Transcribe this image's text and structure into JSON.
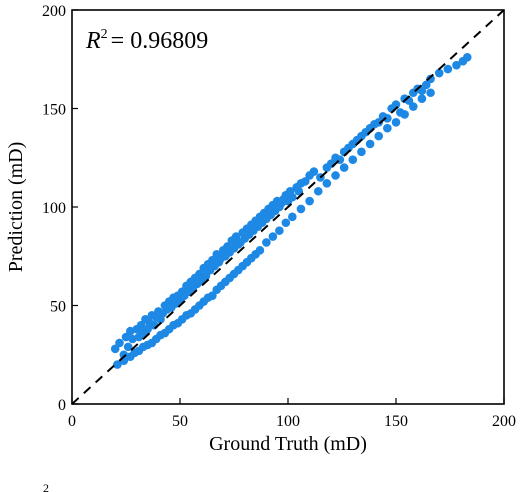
{
  "chart_data": {
    "type": "scatter",
    "xlabel": "Ground Truth (mD)",
    "ylabel": "Prediction (mD)",
    "xlim": [
      0,
      200
    ],
    "ylim": [
      0,
      200
    ],
    "xticks": [
      "0",
      "50",
      "100",
      "150",
      "200"
    ],
    "yticks": [
      "0",
      "50",
      "100",
      "150",
      "200"
    ],
    "annotation": {
      "base": "R",
      "sup": "2",
      "value": "= 0.96809"
    },
    "reference_line": {
      "style": "dashed",
      "from": [
        0,
        0
      ],
      "to": [
        200,
        200
      ],
      "color": "#000000"
    },
    "grid": false,
    "marker_color": "#1E88E5",
    "series": [
      {
        "x": [
          20,
          22,
          24,
          25,
          26,
          27,
          28,
          30,
          31,
          32,
          33,
          34,
          35,
          36,
          37,
          38,
          39,
          40,
          41,
          42,
          43,
          44,
          45,
          46,
          47,
          48,
          49,
          50,
          51,
          52,
          53,
          54,
          55,
          56,
          57,
          58,
          59,
          60,
          61,
          62,
          63,
          64,
          65,
          66,
          67,
          68,
          69,
          70,
          71,
          72,
          73,
          74,
          75,
          76,
          77,
          78,
          79,
          80,
          81,
          82,
          83,
          84,
          85,
          86,
          87,
          88,
          89,
          90,
          91,
          92,
          93,
          94,
          95,
          96,
          97,
          98,
          99,
          100,
          101,
          102,
          104,
          105,
          106,
          108,
          110,
          112,
          115,
          118,
          120,
          122,
          124,
          126,
          128,
          130,
          132,
          134,
          136,
          138,
          140,
          142,
          144,
          146,
          148,
          150,
          152,
          154,
          156,
          158,
          160,
          162,
          164,
          166,
          170,
          174,
          178,
          181,
          183
        ],
        "y": [
          28,
          31,
          25,
          34,
          29,
          37,
          33,
          38,
          34,
          40,
          36,
          43,
          38,
          41,
          45,
          40,
          44,
          47,
          43,
          46,
          50,
          48,
          52,
          49,
          54,
          51,
          55,
          53,
          57,
          55,
          60,
          57,
          62,
          59,
          64,
          61,
          66,
          63,
          69,
          65,
          71,
          68,
          73,
          70,
          76,
          72,
          74,
          78,
          75,
          80,
          77,
          83,
          79,
          85,
          81,
          82,
          87,
          84,
          89,
          86,
          91,
          88,
          93,
          90,
          95,
          92,
          97,
          94,
          99,
          96,
          101,
          98,
          103,
          100,
          102,
          104,
          106,
          103,
          108,
          105,
          110,
          108,
          112,
          113,
          116,
          118,
          115,
          120,
          122,
          125,
          124,
          128,
          130,
          132,
          134,
          136,
          138,
          140,
          142,
          143,
          146,
          145,
          150,
          152,
          148,
          155,
          154,
          158,
          160,
          159,
          162,
          165,
          168,
          170,
          172,
          174,
          176
        ]
      },
      {
        "x": [
          21,
          24,
          27,
          29,
          31,
          33,
          35,
          37,
          39,
          41,
          43,
          45,
          47,
          49,
          51,
          53,
          55,
          57,
          59,
          61,
          63,
          65,
          67,
          69,
          71,
          73,
          75,
          77,
          79,
          81,
          83,
          85,
          87,
          90,
          93,
          96,
          99,
          102,
          106,
          110,
          114,
          118,
          122,
          126,
          130,
          134,
          138,
          142,
          146,
          150,
          154,
          158,
          162,
          166
        ],
        "y": [
          20,
          22,
          24,
          26,
          27,
          29,
          30,
          31,
          33,
          35,
          36,
          38,
          40,
          41,
          43,
          45,
          46,
          48,
          50,
          52,
          54,
          55,
          58,
          60,
          62,
          64,
          66,
          68,
          70,
          72,
          74,
          76,
          78,
          82,
          85,
          88,
          92,
          95,
          99,
          103,
          108,
          112,
          116,
          120,
          124,
          128,
          132,
          136,
          140,
          143,
          147,
          151,
          155,
          158
        ]
      }
    ]
  },
  "bottom_fragment": "2"
}
